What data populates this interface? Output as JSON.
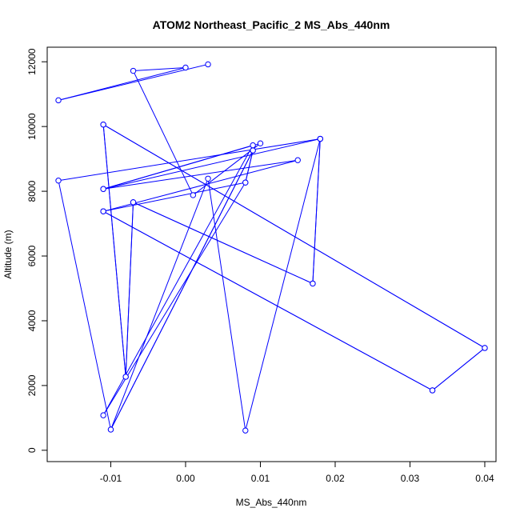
{
  "chart_data": {
    "type": "line",
    "title": "ATOM2 Northeast_Pacific_2 MS_Abs_440nm",
    "xlabel": "MS_Abs_440nm",
    "ylabel": "Altitude (m)",
    "xlim": [
      -0.0185,
      0.0415
    ],
    "ylim": [
      -350,
      12450
    ],
    "xticks": [
      -0.01,
      0.0,
      0.01,
      0.02,
      0.03,
      0.04
    ],
    "xtick_labels": [
      "-0.01",
      "0.00",
      "0.01",
      "0.02",
      "0.03",
      "0.04"
    ],
    "yticks": [
      0,
      2000,
      4000,
      6000,
      8000,
      10000,
      12000
    ],
    "ytick_labels": [
      "0",
      "2000",
      "4000",
      "6000",
      "8000",
      "10000",
      "12000"
    ],
    "marker": "open-circle",
    "grid": false,
    "legend": "none",
    "colors": {
      "series": "#0000ff",
      "axes": "#000000",
      "background": "#ffffff"
    },
    "series": [
      {
        "points": [
          {
            "x": 0.003,
            "y": 11920
          },
          {
            "x": -0.017,
            "y": 10810
          },
          {
            "x": 0.0,
            "y": 11820
          },
          {
            "x": -0.007,
            "y": 11720
          },
          {
            "x": 0.001,
            "y": 7880
          },
          {
            "x": 0.01,
            "y": 9480
          },
          {
            "x": -0.011,
            "y": 8070
          },
          {
            "x": 0.015,
            "y": 8960
          },
          {
            "x": -0.011,
            "y": 7380
          },
          {
            "x": 0.033,
            "y": 1850
          },
          {
            "x": 0.04,
            "y": 3160
          },
          {
            "x": -0.011,
            "y": 10060
          },
          {
            "x": -0.008,
            "y": 2270
          },
          {
            "x": -0.007,
            "y": 7660
          },
          {
            "x": 0.017,
            "y": 5150
          },
          {
            "x": 0.018,
            "y": 9620
          },
          {
            "x": 0.008,
            "y": 610
          },
          {
            "x": 0.003,
            "y": 8390
          },
          {
            "x": -0.01,
            "y": 640
          },
          {
            "x": 0.009,
            "y": 9260
          },
          {
            "x": 0.008,
            "y": 8270
          },
          {
            "x": -0.011,
            "y": 1080
          },
          {
            "x": 0.009,
            "y": 9420
          },
          {
            "x": -0.011,
            "y": 8070
          },
          {
            "x": 0.018,
            "y": 9620
          },
          {
            "x": 0.017,
            "y": 5150
          },
          {
            "x": -0.007,
            "y": 7660
          },
          {
            "x": -0.008,
            "y": 2270
          },
          {
            "x": -0.011,
            "y": 10060
          },
          {
            "x": 0.04,
            "y": 3160
          },
          {
            "x": 0.033,
            "y": 1850
          },
          {
            "x": -0.011,
            "y": 7380
          },
          {
            "x": 0.008,
            "y": 8270
          },
          {
            "x": 0.009,
            "y": 9260
          },
          {
            "x": -0.01,
            "y": 640
          },
          {
            "x": -0.017,
            "y": 8330
          },
          {
            "x": 0.018,
            "y": 9620
          }
        ]
      }
    ]
  }
}
